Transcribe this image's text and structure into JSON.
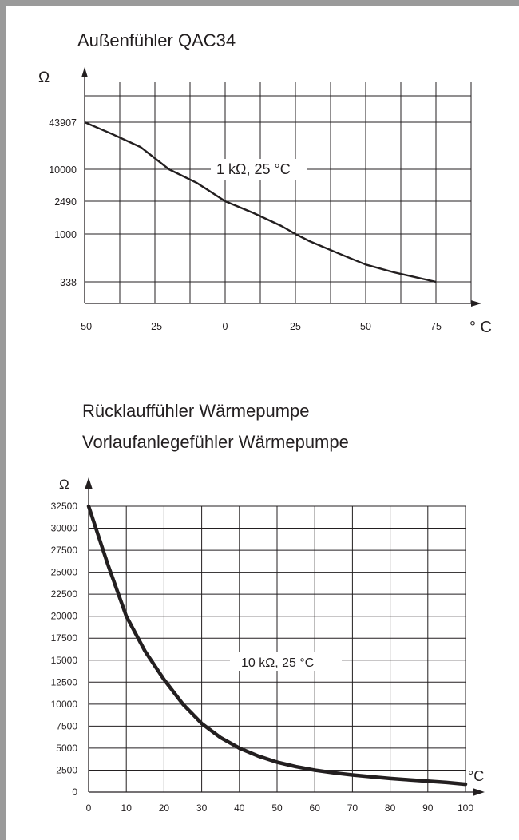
{
  "chart_data": [
    {
      "type": "line",
      "title": "Außenfühler QAC34",
      "ylabel": "Ω",
      "xlabel": "° C",
      "x_ticks": [
        "-50",
        "-25",
        "0",
        "25",
        "50",
        "75"
      ],
      "y_ticks": [
        "43907",
        "10000",
        "2490",
        "1000",
        "338"
      ],
      "xlim": [
        -50,
        87.5
      ],
      "annotation": "1 kΩ, 25 °C",
      "grid": true,
      "series": [
        {
          "x": [
            -50,
            -40,
            -30,
            -20,
            -10,
            0,
            10,
            20,
            25,
            30,
            40,
            50,
            60,
            75
          ],
          "y": [
            43907,
            30000,
            20000,
            10000,
            5500,
            2490,
            1800,
            1250,
            1000,
            850,
            650,
            500,
            420,
            338
          ]
        }
      ]
    },
    {
      "type": "line",
      "title_lines": [
        "Rücklauffühler Wärmepumpe",
        "Vorlaufanlegefühler Wärmepumpe"
      ],
      "ylabel": "Ω",
      "xlabel": "°C",
      "x_ticks": [
        "0",
        "10",
        "20",
        "30",
        "40",
        "50",
        "60",
        "70",
        "80",
        "90",
        "100"
      ],
      "y_ticks": [
        "0",
        "2500",
        "5000",
        "7500",
        "10000",
        "12500",
        "15000",
        "17500",
        "20000",
        "22500",
        "25000",
        "27500",
        "30000",
        "32500"
      ],
      "xlim": [
        0,
        100
      ],
      "ylim": [
        0,
        32500
      ],
      "annotation": "10 kΩ, 25 °C",
      "grid": true,
      "series": [
        {
          "x": [
            0,
            5,
            10,
            15,
            20,
            25,
            30,
            35,
            40,
            45,
            50,
            55,
            60,
            65,
            70,
            75,
            80,
            85,
            90,
            95,
            100
          ],
          "y": [
            32500,
            26000,
            20000,
            16000,
            12800,
            10000,
            7800,
            6200,
            5000,
            4100,
            3400,
            2900,
            2500,
            2200,
            1950,
            1750,
            1550,
            1400,
            1250,
            1100,
            900
          ]
        }
      ]
    }
  ]
}
